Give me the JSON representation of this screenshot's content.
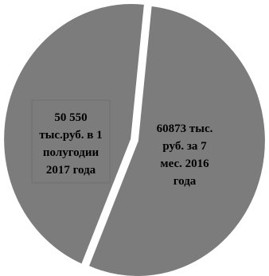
{
  "chart_data": {
    "type": "pie",
    "title": "",
    "categories": [
      "60873 тыс. руб. за 7 мес. 2016 года",
      "50 550 тыс.руб. в 1 полугодии 2017 года"
    ],
    "values": [
      60873,
      50550
    ],
    "slice_color": "#7c7c7c",
    "separator_color": "#ffffff",
    "label_box_color": "#6f6f6f",
    "start_angle_deg": 6,
    "direction": "clockwise",
    "data_labels": [
      {
        "lines": [
          "60873 тыс.",
          "руб. за 7",
          "мес. 2016",
          "года"
        ],
        "boxed": false
      },
      {
        "lines": [
          "50 550",
          "тыс.руб. в 1",
          "полугодии",
          "2017 года"
        ],
        "boxed": true
      }
    ]
  }
}
